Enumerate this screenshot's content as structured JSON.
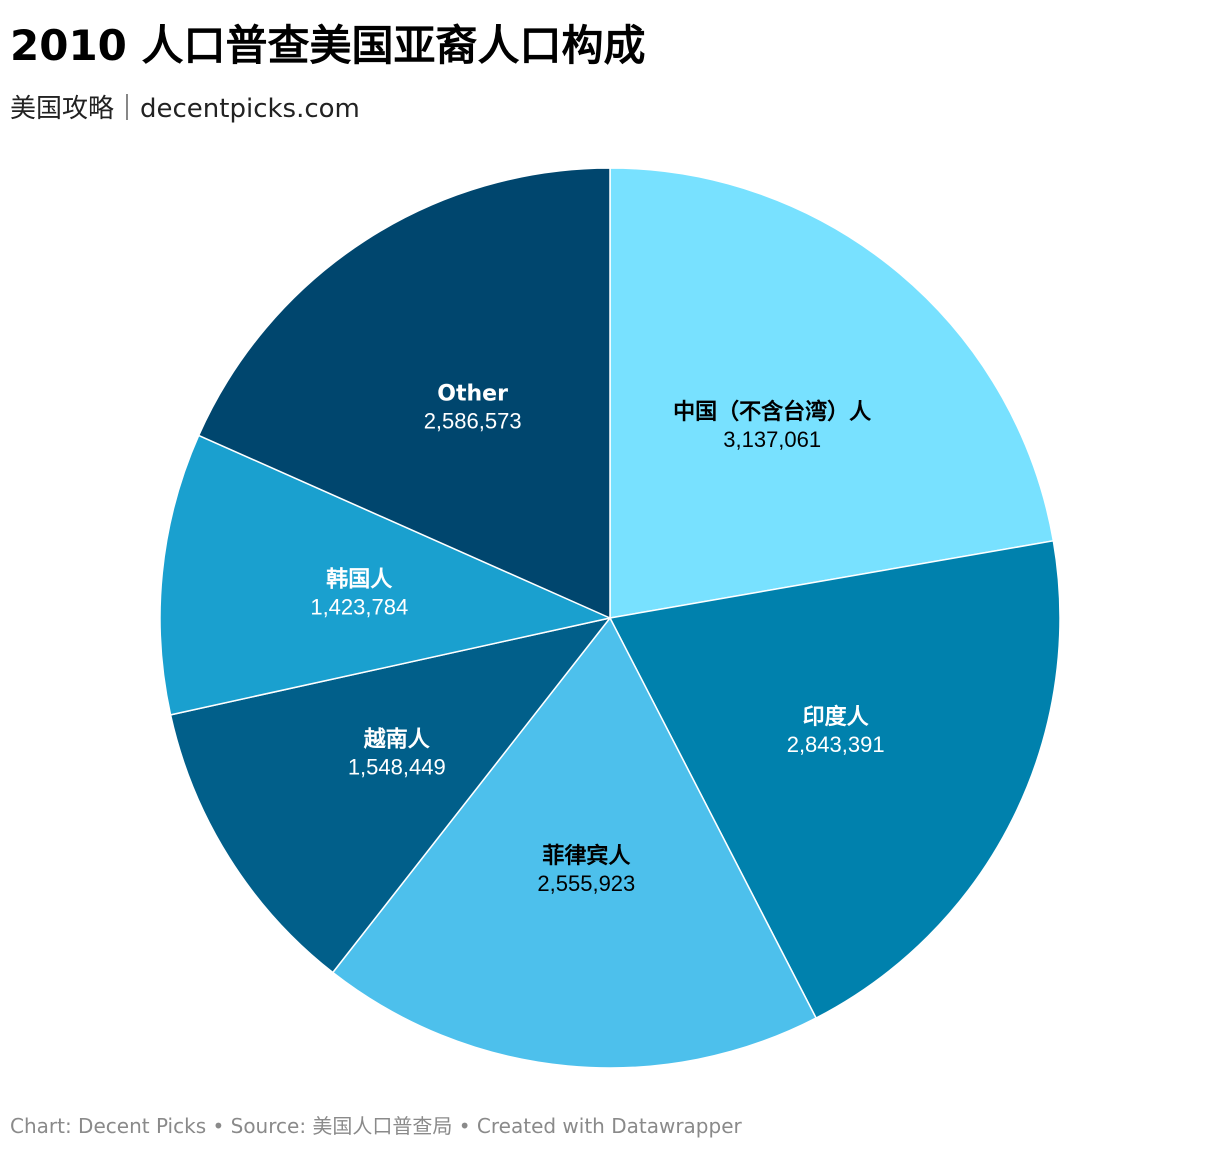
{
  "title": "2010 人口普查美国亚裔人口构成",
  "subtitle": "美国攻略｜decentpicks.com",
  "footer": "Chart: Decent Picks • Source: 美国人口普查局 • Created with Datawrapper",
  "chart_data": {
    "type": "pie",
    "categories": [
      "中国（不含台湾）人",
      "印度人",
      "菲律宾人",
      "越南人",
      "韩国人",
      "Other"
    ],
    "values": [
      3137061,
      2843391,
      2555923,
      1548449,
      1423784,
      2586573
    ],
    "value_labels": [
      "3,137,061",
      "2,843,391",
      "2,555,923",
      "1,548,449",
      "1,423,784",
      "2,586,573"
    ],
    "colors": [
      "#78e1ff",
      "#0081ad",
      "#4dc0ec",
      "#015f8a",
      "#1aa0cf",
      "#00466e"
    ],
    "label_colors": [
      "#000000",
      "#ffffff",
      "#000000",
      "#ffffff",
      "#ffffff",
      "#ffffff"
    ],
    "start_angle": "12 o'clock, clockwise",
    "legend": "none",
    "labels": "on slices"
  }
}
